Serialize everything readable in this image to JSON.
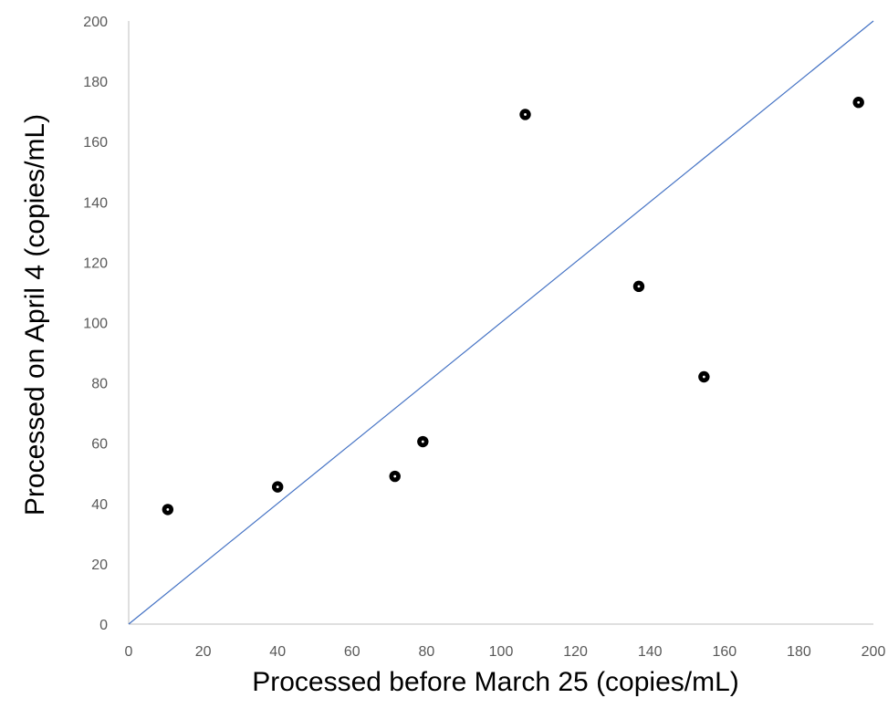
{
  "chart_data": {
    "type": "scatter",
    "title": "",
    "xlabel": "Processed before March 25 (copies/mL)",
    "ylabel": "Processed on April 4 (copies/mL)",
    "xlim": [
      0,
      200
    ],
    "ylim": [
      0,
      200
    ],
    "x_ticks": [
      "0",
      "20",
      "40",
      "60",
      "80",
      "100",
      "120",
      "140",
      "160",
      "180",
      "200"
    ],
    "y_ticks": [
      "0",
      "20",
      "40",
      "60",
      "80",
      "100",
      "120",
      "140",
      "160",
      "180",
      "200"
    ],
    "grid": false,
    "legend": "none",
    "points": [
      {
        "x": 10.5,
        "y": 38
      },
      {
        "x": 40,
        "y": 45.5
      },
      {
        "x": 71.5,
        "y": 49
      },
      {
        "x": 79,
        "y": 60.5
      },
      {
        "x": 106.5,
        "y": 169
      },
      {
        "x": 137,
        "y": 112
      },
      {
        "x": 154.5,
        "y": 82
      },
      {
        "x": 196,
        "y": 173
      }
    ],
    "reference_line": {
      "from": [
        0,
        0
      ],
      "to": [
        200,
        200
      ],
      "label": ""
    },
    "colors": {
      "points": "#000000",
      "reference_line": "#4472c4",
      "axis": "#bfbfbf",
      "tick_text": "#595959"
    }
  }
}
